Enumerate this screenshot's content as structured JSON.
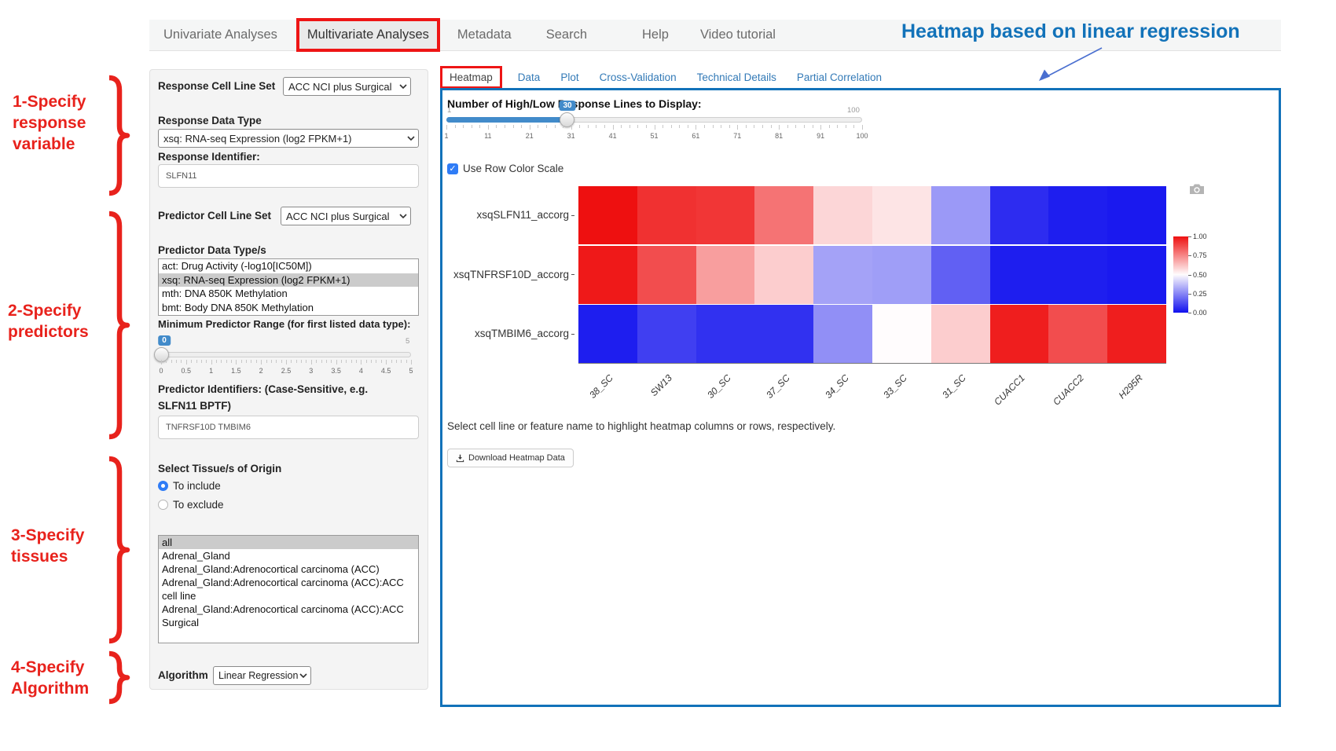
{
  "colors": {
    "accent_blue": "#1272b9",
    "annotation_red": "#e8221c",
    "slider_blue": "#428bca",
    "link_blue": "#337ab7"
  },
  "nav": {
    "items": [
      "Univariate Analyses",
      "Multivariate Analyses",
      "Metadata",
      "Search",
      "Help",
      "Video tutorial"
    ],
    "active": "Multivariate Analyses"
  },
  "annotations": {
    "heading": "Heatmap based on linear regression",
    "step1": "1-Specify response variable",
    "step2": "2-Specify predictors",
    "step3": "3-Specify tissues",
    "step4": "4-Specify Algorithm"
  },
  "form": {
    "response_cell_line_set": {
      "label": "Response Cell Line Set",
      "value": "ACC NCI plus Surgical"
    },
    "response_data_type": {
      "label": "Response Data Type",
      "value": "xsq: RNA-seq Expression (log2 FPKM+1)"
    },
    "response_identifier": {
      "label": "Response Identifier:",
      "value": "SLFN11"
    },
    "predictor_cell_line_set": {
      "label": "Predictor Cell Line Set",
      "value": "ACC NCI plus Surgical"
    },
    "predictor_data_types": {
      "label": "Predictor Data Type/s",
      "options": [
        "act: Drug Activity (-log10[IC50M])",
        "xsq: RNA-seq Expression (log2 FPKM+1)",
        "mth: DNA 850K Methylation",
        "bmt: Body DNA 850K Methylation"
      ],
      "selected": "xsq: RNA-seq Expression (log2 FPKM+1)"
    },
    "min_predictor_range": {
      "label": "Minimum Predictor Range (for first listed data type):",
      "value": "0",
      "max_label": "5",
      "ticks": [
        "0",
        "0.5",
        "1",
        "1.5",
        "2",
        "2.5",
        "3",
        "3.5",
        "4",
        "4.5",
        "5"
      ]
    },
    "predictor_identifiers": {
      "label": "Predictor Identifiers: (Case-Sensitive, e.g. SLFN11 BPTF)",
      "value": "TNFRSF10D TMBIM6"
    },
    "tissue": {
      "label": "Select Tissue/s of Origin",
      "include_label": "To include",
      "exclude_label": "To exclude",
      "selected_mode": "To include",
      "options": [
        "all",
        "Adrenal_Gland",
        "Adrenal_Gland:Adrenocortical carcinoma (ACC)",
        "Adrenal_Gland:Adrenocortical carcinoma (ACC):ACC cell line",
        "Adrenal_Gland:Adrenocortical carcinoma (ACC):ACC Surgical"
      ],
      "selected": "all"
    },
    "algorithm": {
      "label": "Algorithm",
      "value": "Linear Regression"
    }
  },
  "tabs": {
    "items": [
      "Heatmap",
      "Data",
      "Plot",
      "Cross-Validation",
      "Technical Details",
      "Partial Correlation"
    ],
    "active": "Heatmap"
  },
  "heatmap_panel": {
    "lines_slider": {
      "label": "Number of High/Low Response Lines to Display:",
      "min_label": "1",
      "max_label": "100",
      "value": "30",
      "ticks": [
        "1",
        "11",
        "21",
        "31",
        "41",
        "51",
        "61",
        "71",
        "81",
        "91",
        "100"
      ]
    },
    "row_scale_label": "Use Row Color Scale",
    "hint": "Select cell line or feature name to highlight heatmap columns or rows, respectively.",
    "download_label": "Download Heatmap Data"
  },
  "chart_data": {
    "type": "heatmap",
    "title": "",
    "columns": [
      "38_SC",
      "SW13",
      "30_SC",
      "37_SC",
      "34_SC",
      "33_SC",
      "31_SC",
      "CUACC1",
      "CUACC2",
      "H295R"
    ],
    "rows": [
      {
        "name": "xsqSLFN11_accorg",
        "values": [
          1.0,
          0.93,
          0.92,
          0.79,
          0.58,
          0.55,
          0.29,
          0.06,
          0.03,
          0.02
        ]
      },
      {
        "name": "xsqTNFRSF10D_accorg",
        "values": [
          0.98,
          0.87,
          0.7,
          0.6,
          0.31,
          0.3,
          0.17,
          0.03,
          0.03,
          0.02
        ]
      },
      {
        "name": "xsqTMBIM6_accorg",
        "values": [
          0.03,
          0.1,
          0.07,
          0.07,
          0.27,
          0.5,
          0.6,
          0.97,
          0.87,
          0.97
        ]
      }
    ],
    "value_range": [
      0,
      1
    ],
    "colorbar_ticks": [
      "1.00",
      "0.75",
      "0.50",
      "0.25",
      "0.00"
    ],
    "colorscale": {
      "high": "#ee1010",
      "mid": "#fffcfd",
      "low": "#1010ee"
    },
    "legend_position": "right"
  }
}
